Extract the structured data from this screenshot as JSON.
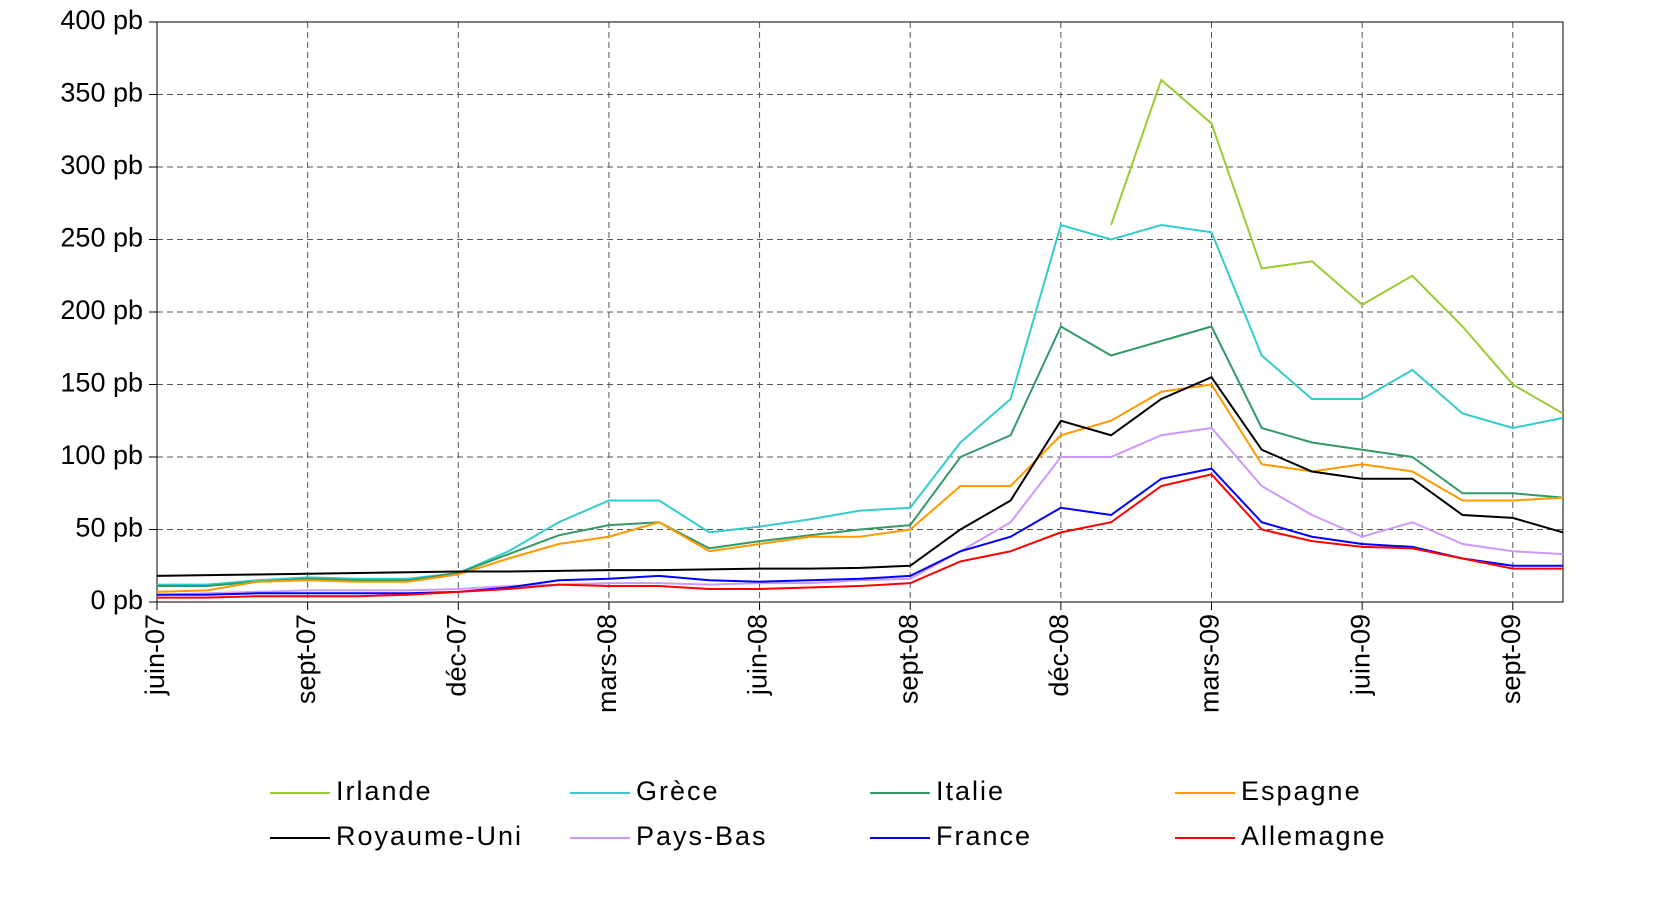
{
  "chart_data": {
    "type": "line",
    "x": [
      "2007-06",
      "2007-07",
      "2007-08",
      "2007-09",
      "2007-10",
      "2007-11",
      "2007-12",
      "2008-01",
      "2008-02",
      "2008-03",
      "2008-04",
      "2008-05",
      "2008-06",
      "2008-07",
      "2008-08",
      "2008-09",
      "2008-10",
      "2008-11",
      "2008-12",
      "2009-01",
      "2009-02",
      "2009-03",
      "2009-04",
      "2009-05",
      "2009-06",
      "2009-07",
      "2009-08",
      "2009-09",
      "2009-10"
    ],
    "series": [
      {
        "name": "Irlande",
        "color": "#99cc33",
        "values": [
          null,
          null,
          null,
          null,
          null,
          null,
          null,
          null,
          null,
          null,
          null,
          null,
          null,
          null,
          null,
          null,
          null,
          null,
          null,
          260,
          360,
          330,
          230,
          235,
          205,
          225,
          190,
          150,
          130
        ]
      },
      {
        "name": "Grèce",
        "color": "#33cccc",
        "values": [
          12,
          12,
          15,
          17,
          16,
          16,
          20,
          35,
          55,
          70,
          70,
          48,
          52,
          57,
          63,
          65,
          110,
          140,
          260,
          250,
          260,
          255,
          170,
          140,
          140,
          160,
          130,
          120,
          127
        ]
      },
      {
        "name": "Italie",
        "color": "#339966",
        "values": [
          11,
          11,
          14,
          16,
          15,
          15,
          20,
          33,
          46,
          53,
          55,
          37,
          42,
          46,
          50,
          53,
          100,
          115,
          190,
          170,
          180,
          190,
          120,
          110,
          105,
          100,
          75,
          75,
          72
        ]
      },
      {
        "name": "Espagne",
        "color": "#ff9900",
        "values": [
          7,
          8,
          14,
          15,
          14,
          14,
          19,
          30,
          40,
          45,
          55,
          35,
          40,
          45,
          45,
          50,
          80,
          80,
          115,
          125,
          145,
          150,
          95,
          90,
          95,
          90,
          70,
          70,
          72
        ]
      },
      {
        "name": "Royaume-Uni",
        "color": "#000000",
        "values": [
          18,
          18.5,
          19,
          19.5,
          20,
          20.5,
          21,
          21,
          21.5,
          22,
          22,
          22.5,
          23,
          23,
          23.5,
          25,
          50,
          70,
          125,
          115,
          140,
          155,
          105,
          90,
          85,
          85,
          60,
          58,
          48
        ]
      },
      {
        "name": "Pays-Bas",
        "color": "#cc99ff",
        "values": [
          5,
          6,
          7,
          8,
          8,
          8,
          9,
          11,
          12,
          13,
          13,
          12,
          13,
          13,
          15,
          16,
          35,
          55,
          100,
          100,
          115,
          120,
          80,
          60,
          45,
          55,
          40,
          35,
          33
        ]
      },
      {
        "name": "France",
        "color": "#0000ff",
        "values": [
          5,
          5,
          6,
          6,
          6,
          6,
          7,
          10,
          15,
          16,
          18,
          15,
          14,
          15,
          16,
          18,
          35,
          45,
          65,
          60,
          85,
          92,
          55,
          45,
          40,
          38,
          30,
          25,
          25
        ]
      },
      {
        "name": "Allemagne",
        "color": "#ff0000",
        "values": [
          3,
          3,
          4,
          4,
          4,
          5,
          7,
          9,
          12,
          11,
          11,
          9,
          9,
          10,
          11,
          13,
          28,
          35,
          48,
          55,
          80,
          88,
          50,
          42,
          38,
          37,
          30,
          23,
          23
        ]
      }
    ],
    "xlim": [
      "2007-06",
      "2009-10"
    ],
    "xticks": [
      {
        "value": "2007-06",
        "label": "juin-07"
      },
      {
        "value": "2007-09",
        "label": "sept-07"
      },
      {
        "value": "2007-12",
        "label": "déc-07"
      },
      {
        "value": "2008-03",
        "label": "mars-08"
      },
      {
        "value": "2008-06",
        "label": "juin-08"
      },
      {
        "value": "2008-09",
        "label": "sept-08"
      },
      {
        "value": "2008-12",
        "label": "déc-08"
      },
      {
        "value": "2009-03",
        "label": "mars-09"
      },
      {
        "value": "2009-06",
        "label": "juin-09"
      },
      {
        "value": "2009-09",
        "label": "sept-09"
      }
    ],
    "ylim": [
      0,
      400
    ],
    "yticks": [
      {
        "value": 0,
        "label": "0 pb"
      },
      {
        "value": 50,
        "label": "50 pb"
      },
      {
        "value": 100,
        "label": "100 pb"
      },
      {
        "value": 150,
        "label": "150 pb"
      },
      {
        "value": 200,
        "label": "200 pb"
      },
      {
        "value": 250,
        "label": "250 pb"
      },
      {
        "value": 300,
        "label": "300 pb"
      },
      {
        "value": 350,
        "label": "350 pb"
      },
      {
        "value": 400,
        "label": "400 pb"
      }
    ],
    "grid": true,
    "legend": "bottom"
  }
}
